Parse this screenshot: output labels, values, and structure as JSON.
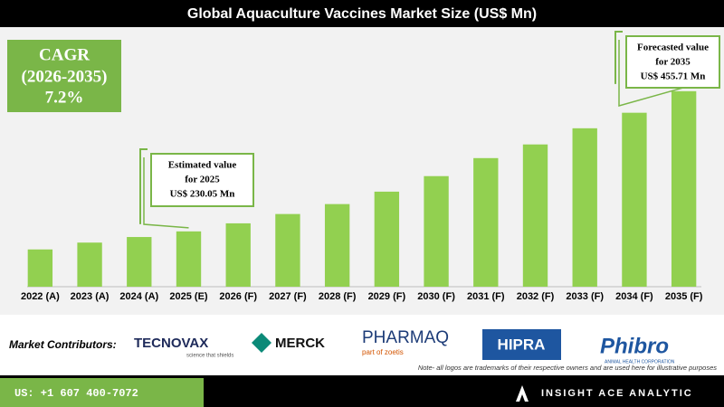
{
  "chart_data": {
    "type": "bar",
    "title": "Global Aquaculture Vaccines Market Size (US$ Mn)",
    "categories": [
      "2022 (A)",
      "2023 (A)",
      "2024 (A)",
      "2025 (E)",
      "2026 (F)",
      "2027 (F)",
      "2028 (F)",
      "2029 (F)",
      "2030 (F)",
      "2031 (F)",
      "2032 (F)",
      "2033 (F)",
      "2034 (F)",
      "2035 (F)"
    ],
    "values": [
      201,
      212,
      221,
      230.05,
      243,
      258,
      274,
      294,
      319,
      348,
      370,
      396,
      421,
      455.71
    ],
    "color": "#92d050",
    "ylim": [
      141,
      470
    ],
    "grid": false,
    "annotations": [
      {
        "lines": [
          "Estimated value",
          "for 2025",
          "US$ 230.05 Mn"
        ],
        "category": 3
      },
      {
        "lines": [
          "Forecasted value",
          "for 2035",
          "US$ 455.71 Mn"
        ],
        "category": 13
      }
    ],
    "cagr": {
      "label": "CAGR",
      "period": "(2026-2035)",
      "value": "7.2%"
    }
  },
  "page": {
    "contributors_label": "Market Contributors:",
    "logos": [
      "TECNOVAX",
      "science that shields",
      "MERCK",
      "PHARMAQ",
      "part of zoetis",
      "HIPRA",
      "Phibro",
      "ANIMAL HEALTH CORPORATION"
    ],
    "note": "Note- all logos are trademarks of their respective owners and are used here for illustrative purposes",
    "phone": "US: +1 607 400-7072",
    "brand": "INSIGHT ACE ANALYTIC"
  }
}
